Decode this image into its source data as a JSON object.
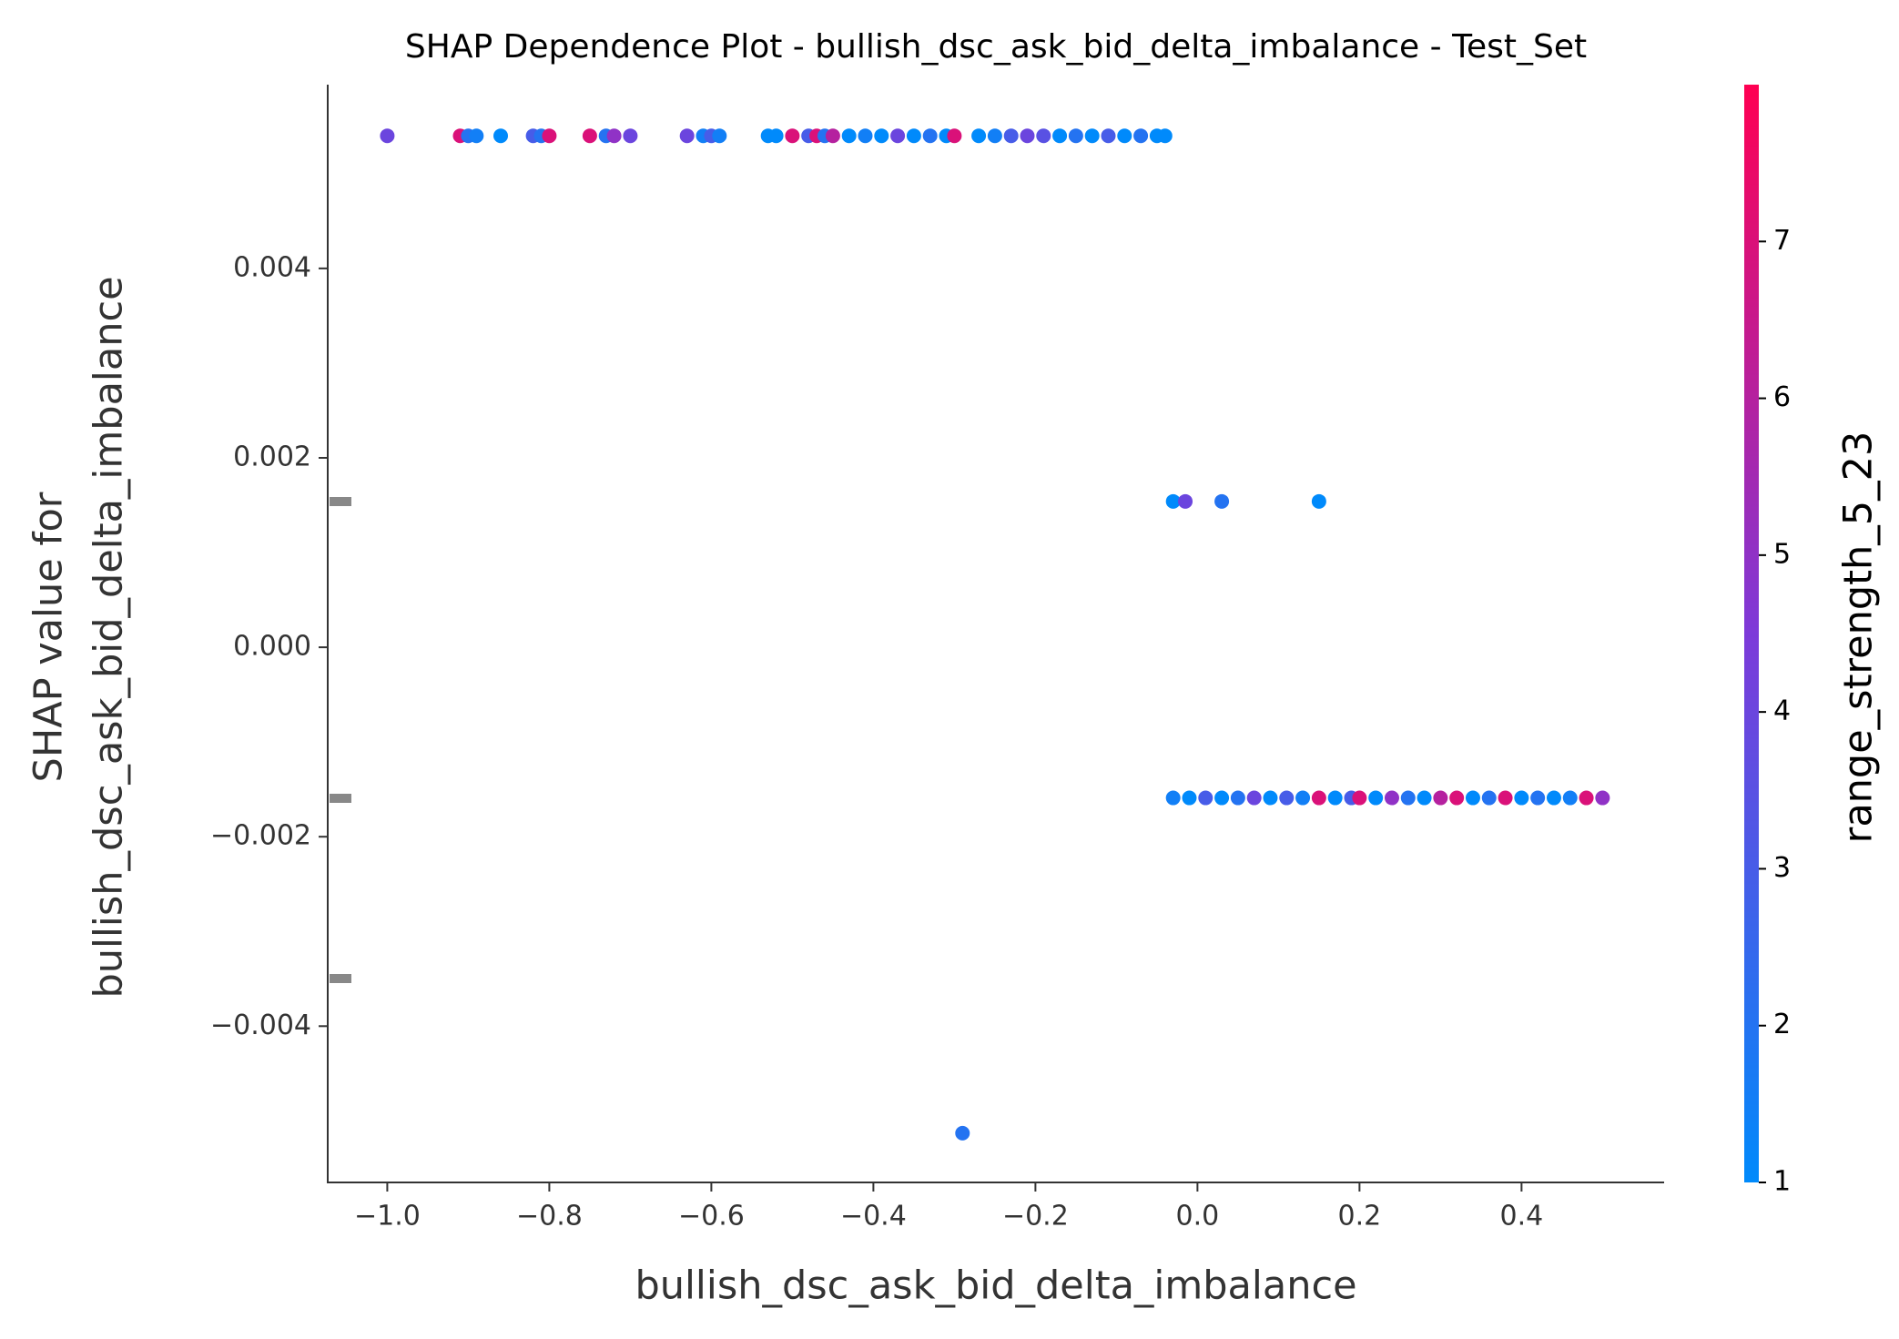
{
  "chart_data": {
    "type": "scatter",
    "title": "SHAP Dependence Plot - bullish_dsc_ask_bid_delta_imbalance - Test_Set",
    "xlabel": "bullish_dsc_ask_bid_delta_imbalance",
    "ylabel": [
      "SHAP value for",
      "bullish_dsc_ask_bid_delta_imbalance"
    ],
    "colorbar_label": "range_strength_5_23",
    "colormap": [
      "#008afb",
      "#7d3ad9",
      "#ff0052"
    ],
    "xlim": [
      -1.0735,
      0.576
    ],
    "ylim": [
      -0.00565,
      0.00594
    ],
    "clim": [
      1,
      8.0
    ],
    "xticks": [
      {
        "value": -1.0,
        "label": "−1.0"
      },
      {
        "value": -0.8,
        "label": "−0.8"
      },
      {
        "value": -0.6,
        "label": "−0.6"
      },
      {
        "value": -0.4,
        "label": "−0.4"
      },
      {
        "value": -0.2,
        "label": "−0.2"
      },
      {
        "value": 0,
        "label": "0.0"
      },
      {
        "value": 0.2,
        "label": "0.2"
      },
      {
        "value": 0.4,
        "label": "0.4"
      }
    ],
    "yticks": [
      {
        "value": -0.004,
        "label": "−0.004"
      },
      {
        "value": -0.002,
        "label": "−0.002"
      },
      {
        "value": 0,
        "label": "0.000"
      },
      {
        "value": 0.002,
        "label": "0.002"
      },
      {
        "value": 0.004,
        "label": "0.004"
      }
    ],
    "cticks": [
      1,
      2,
      3,
      4,
      5,
      6,
      7
    ],
    "x": [
      -1.0,
      -0.91,
      -0.9,
      -0.89,
      -0.86,
      -0.82,
      -0.81,
      -0.8,
      -0.75,
      -0.73,
      -0.72,
      -0.7,
      -0.63,
      -0.61,
      -0.6,
      -0.59,
      -0.53,
      -0.52,
      -0.5,
      -0.48,
      -0.47,
      -0.46,
      -0.45,
      -0.43,
      -0.41,
      -0.39,
      -0.37,
      -0.35,
      -0.33,
      -0.31,
      -0.3,
      -0.27,
      -0.25,
      -0.23,
      -0.21,
      -0.19,
      -0.17,
      -0.15,
      -0.13,
      -0.11,
      -0.09,
      -0.07,
      -0.05,
      -0.04,
      -0.03,
      -0.015,
      0.03,
      0.15,
      -0.03,
      -0.01,
      0.01,
      0.03,
      0.05,
      0.07,
      0.09,
      0.11,
      0.13,
      0.15,
      0.17,
      0.19,
      0.2,
      0.22,
      0.24,
      0.26,
      0.28,
      0.3,
      0.32,
      0.34,
      0.36,
      0.38,
      0.4,
      0.42,
      0.44,
      0.46,
      0.48,
      0.5,
      -0.29
    ],
    "values": [
      0.0054,
      0.0054,
      0.0054,
      0.0054,
      0.0054,
      0.0054,
      0.0054,
      0.0054,
      0.0054,
      0.0054,
      0.0054,
      0.0054,
      0.0054,
      0.0054,
      0.0054,
      0.0054,
      0.0054,
      0.0054,
      0.0054,
      0.0054,
      0.0054,
      0.0054,
      0.0054,
      0.0054,
      0.0054,
      0.0054,
      0.0054,
      0.0054,
      0.0054,
      0.0054,
      0.0054,
      0.0054,
      0.0054,
      0.0054,
      0.0054,
      0.0054,
      0.0054,
      0.0054,
      0.0054,
      0.0054,
      0.0054,
      0.0054,
      0.0054,
      0.0054,
      0.00154,
      0.00154,
      0.00154,
      0.00154,
      -0.00159,
      -0.00159,
      -0.00159,
      -0.00159,
      -0.00159,
      -0.00159,
      -0.00159,
      -0.00159,
      -0.00159,
      -0.00159,
      -0.00159,
      -0.00159,
      -0.00159,
      -0.00159,
      -0.00159,
      -0.00159,
      -0.00159,
      -0.00159,
      -0.00159,
      -0.00159,
      -0.00159,
      -0.00159,
      -0.00159,
      -0.00159,
      -0.00159,
      -0.00159,
      -0.00159,
      -0.00159,
      -0.00513
    ],
    "color_values": [
      4,
      7,
      2,
      1.5,
      1,
      3,
      2,
      7,
      7,
      2,
      5,
      4,
      4,
      1.5,
      3,
      1.5,
      1,
      1,
      7,
      3,
      7,
      2,
      6,
      1,
      1.5,
      1,
      4,
      1,
      2,
      1,
      7,
      1,
      1.5,
      3,
      4,
      3.5,
      1,
      2,
      1,
      3,
      1,
      2,
      1,
      1,
      1,
      4,
      2,
      1,
      1.5,
      1,
      3,
      1,
      2,
      4,
      1,
      3,
      1.5,
      7,
      1,
      3,
      7,
      1,
      5,
      2,
      1,
      6,
      7,
      1,
      2,
      7,
      1,
      2,
      1,
      1.5,
      7,
      5,
      2
    ]
  }
}
